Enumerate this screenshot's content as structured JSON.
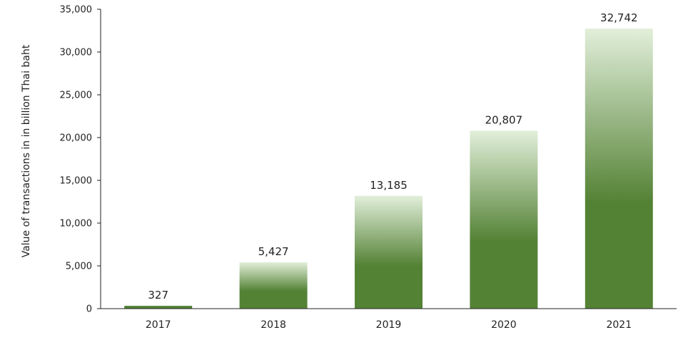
{
  "chart_data": {
    "type": "bar",
    "categories": [
      "2017",
      "2018",
      "2019",
      "2020",
      "2021"
    ],
    "values": [
      327,
      5427,
      13185,
      20807,
      32742
    ],
    "value_labels": [
      "327",
      "5,427",
      "13,185",
      "20,807",
      "32,742"
    ],
    "title": "",
    "xlabel": "",
    "ylabel": "Value of transactions in in billion Thai baht",
    "ylim": [
      0,
      35000
    ],
    "yticks": [
      0,
      5000,
      10000,
      15000,
      20000,
      25000,
      30000,
      35000
    ],
    "ytick_labels": [
      "0",
      "5,000",
      "10,000",
      "15,000",
      "20,000",
      "25,000",
      "30,000",
      "35,000"
    ],
    "grid": false,
    "legend": "none",
    "colors": {
      "bar_dark": "#548235",
      "bar_light": "#e2efda",
      "axis": "#222222"
    }
  }
}
